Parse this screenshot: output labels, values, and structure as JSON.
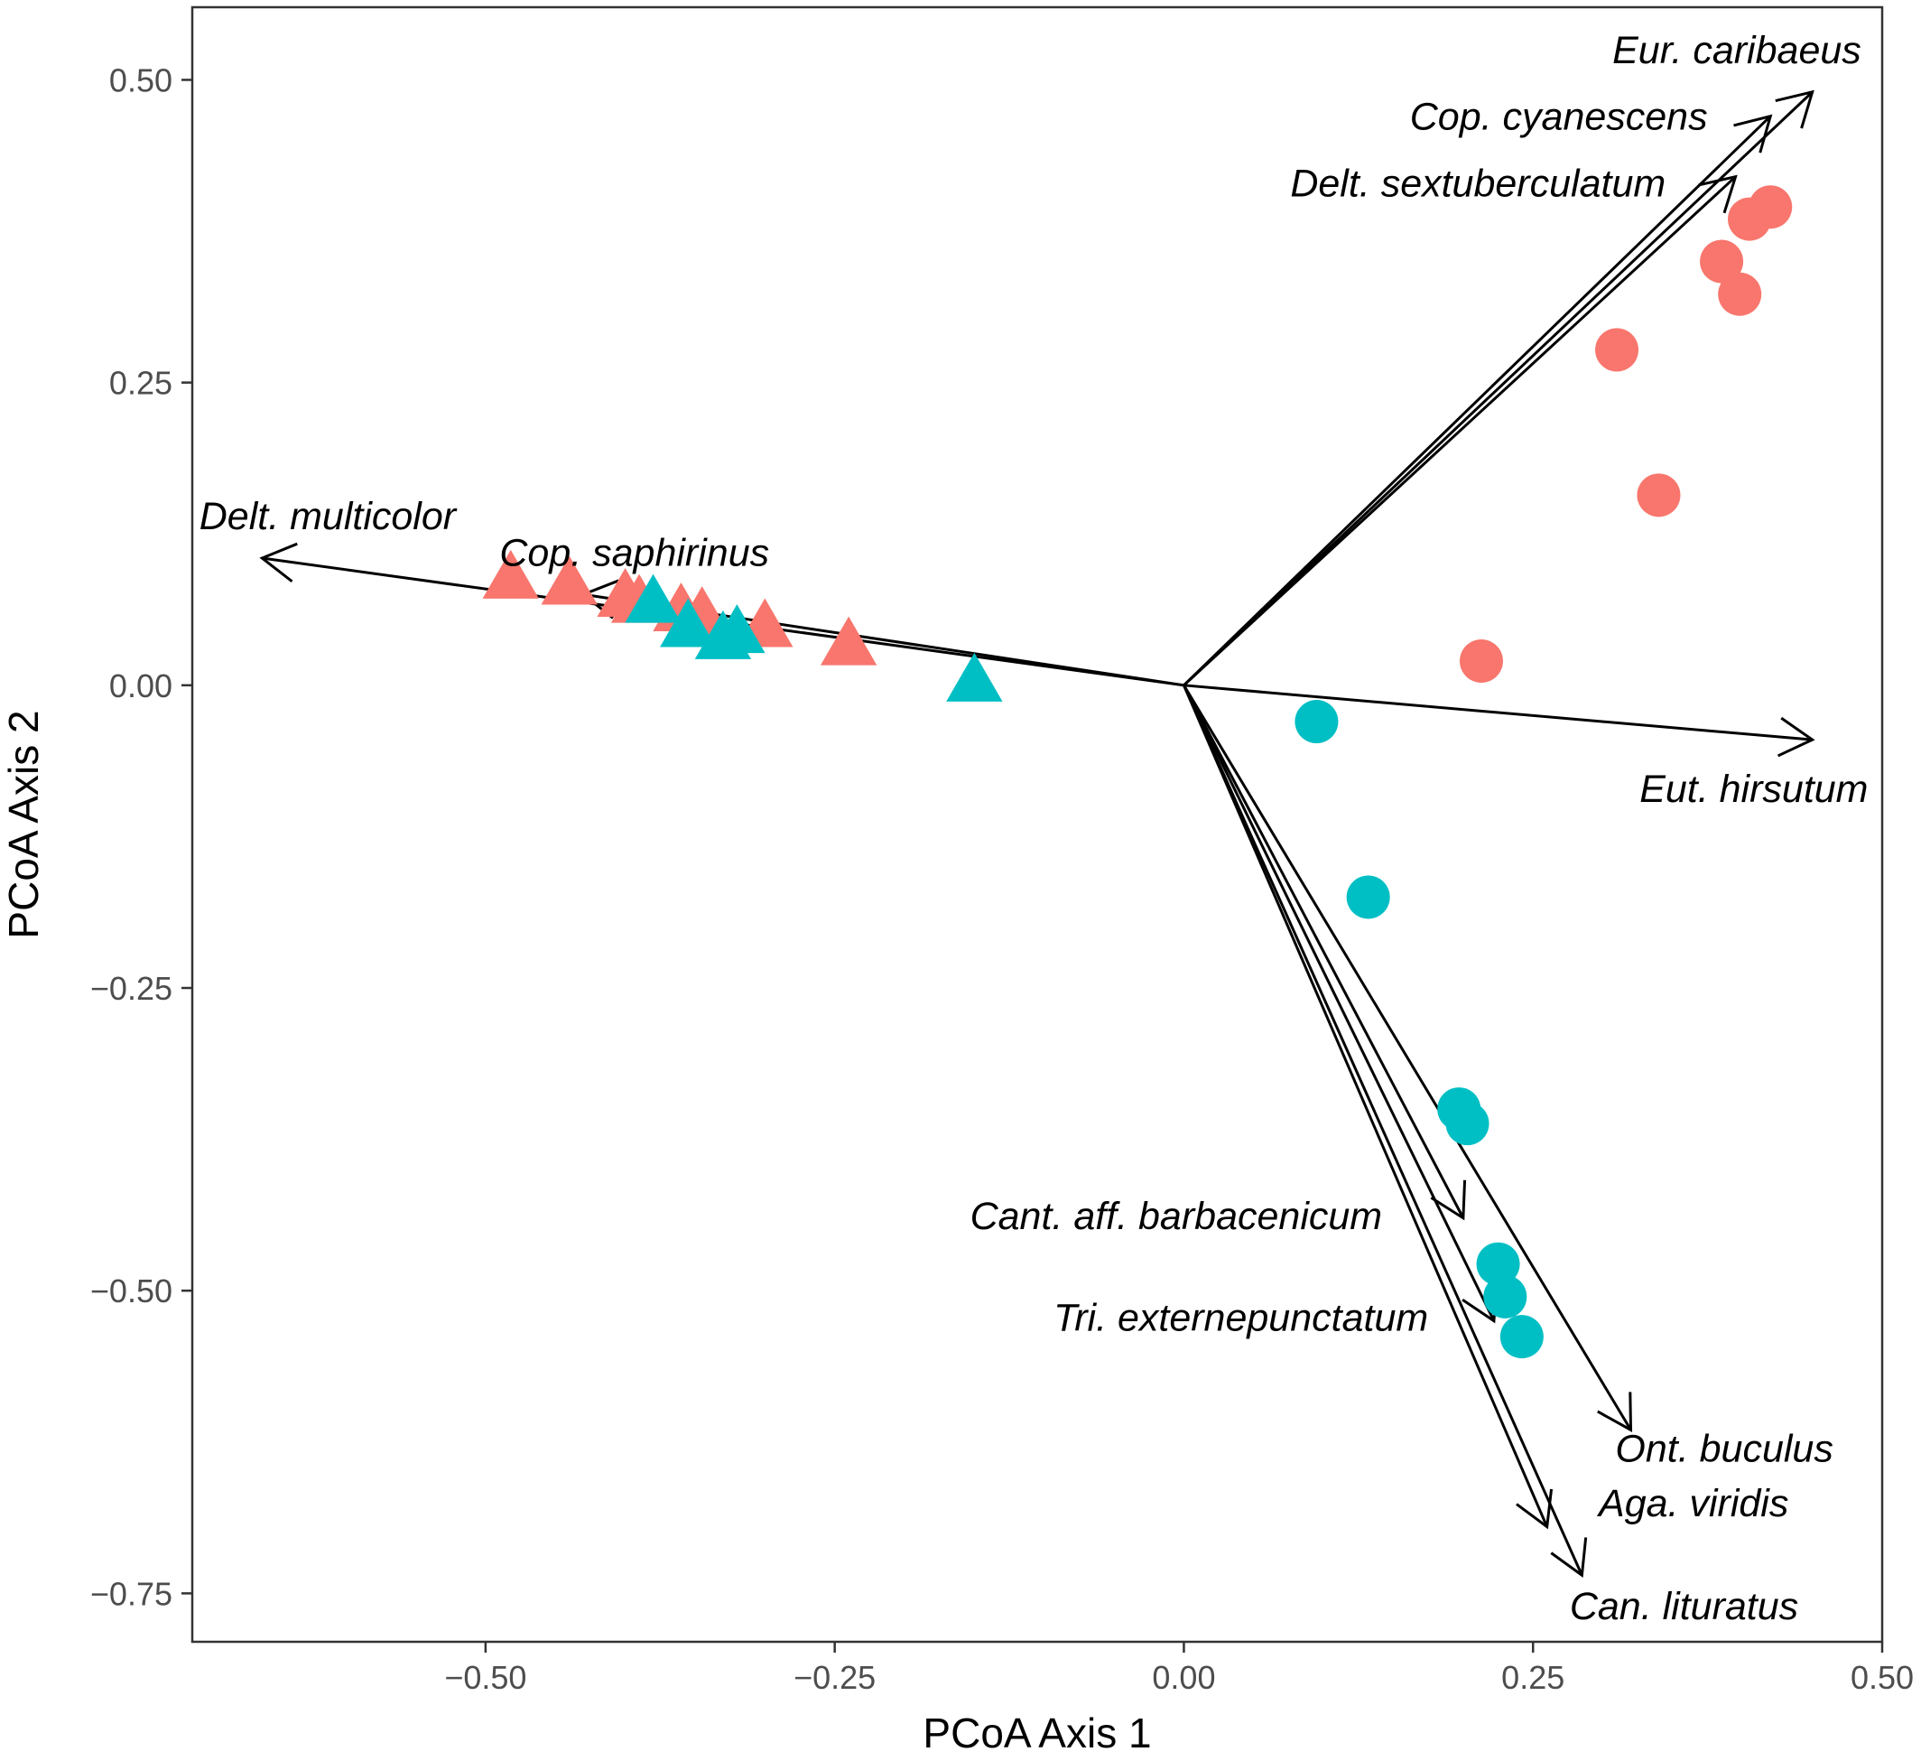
{
  "chart_data": {
    "type": "scatter",
    "title": "",
    "xlabel": "PCoA Axis 1",
    "ylabel": "PCoA Axis 2",
    "xlim": [
      -0.71,
      0.5
    ],
    "ylim": [
      -0.79,
      0.56
    ],
    "x_ticks": [
      -0.5,
      -0.25,
      0.0,
      0.25,
      0.5
    ],
    "x_tick_labels": [
      "−0.50",
      "−0.25",
      "0.00",
      "0.25",
      "0.50"
    ],
    "y_ticks": [
      0.5,
      0.25,
      0.0,
      -0.25,
      -0.5,
      -0.75
    ],
    "y_tick_labels": [
      "0.50",
      "0.25",
      "0.00",
      "−0.25",
      "−0.50",
      "−0.75"
    ],
    "grid": false,
    "legend": "none",
    "colors": {
      "red": "#F8766D",
      "cyan": "#00BFC4",
      "arrow": "#000000"
    },
    "series": [
      {
        "color": "red",
        "shape": "circle",
        "points": [
          [
            0.42,
            0.395
          ],
          [
            0.405,
            0.385
          ],
          [
            0.385,
            0.35
          ],
          [
            0.398,
            0.323
          ],
          [
            0.31,
            0.277
          ],
          [
            0.34,
            0.157
          ],
          [
            0.213,
            0.02
          ]
        ]
      },
      {
        "color": "cyan",
        "shape": "circle",
        "points": [
          [
            0.095,
            -0.03
          ],
          [
            0.132,
            -0.175
          ],
          [
            0.197,
            -0.35
          ],
          [
            0.203,
            -0.362
          ],
          [
            0.225,
            -0.478
          ],
          [
            0.23,
            -0.505
          ],
          [
            0.242,
            -0.538
          ]
        ]
      },
      {
        "color": "red",
        "shape": "triangle",
        "points": [
          [
            -0.482,
            0.085
          ],
          [
            -0.44,
            0.08
          ],
          [
            -0.4,
            0.07
          ],
          [
            -0.39,
            0.065
          ],
          [
            -0.36,
            0.058
          ],
          [
            -0.345,
            0.055
          ],
          [
            -0.3,
            0.045
          ],
          [
            -0.24,
            0.03
          ]
        ]
      },
      {
        "color": "cyan",
        "shape": "triangle",
        "points": [
          [
            -0.38,
            0.065
          ],
          [
            -0.355,
            0.045
          ],
          [
            -0.32,
            0.04
          ],
          [
            -0.33,
            0.035
          ],
          [
            -0.15,
            0.0
          ]
        ]
      }
    ],
    "vectors": [
      {
        "label": "Eur. caribaeus",
        "x": 0.45,
        "y": 0.49,
        "label_x": 0.485,
        "label_y": 0.525
      },
      {
        "label": "Cop. cyanescens",
        "x": 0.42,
        "y": 0.47,
        "label_x": 0.375,
        "label_y": 0.47
      },
      {
        "label": "Delt. sextuberculatum",
        "x": 0.395,
        "y": 0.42,
        "label_x": 0.345,
        "label_y": 0.415
      },
      {
        "label": "Delt. multicolor",
        "x": -0.66,
        "y": 0.105,
        "label_x": -0.705,
        "label_y": 0.14
      },
      {
        "label": "Cop. saphirinus",
        "x": -0.43,
        "y": 0.075,
        "label_x": -0.49,
        "label_y": 0.11
      },
      {
        "label": "Eut. hirsutum",
        "x": 0.45,
        "y": -0.045,
        "label_x": 0.49,
        "label_y": -0.085
      },
      {
        "label": "Cant. aff. barbacenicum",
        "x": 0.2,
        "y": -0.44,
        "label_x": 0.142,
        "label_y": -0.438
      },
      {
        "label": "Tri. externepunctatum",
        "x": 0.222,
        "y": -0.525,
        "label_x": 0.175,
        "label_y": -0.522
      },
      {
        "label": "Ont. buculus",
        "x": 0.32,
        "y": -0.615,
        "label_x": 0.465,
        "label_y": -0.63
      },
      {
        "label": "Aga. viridis",
        "x": 0.26,
        "y": -0.695,
        "label_x": 0.433,
        "label_y": -0.675
      },
      {
        "label": "Can. lituratus",
        "x": 0.285,
        "y": -0.735,
        "label_x": 0.44,
        "label_y": -0.76
      }
    ]
  }
}
